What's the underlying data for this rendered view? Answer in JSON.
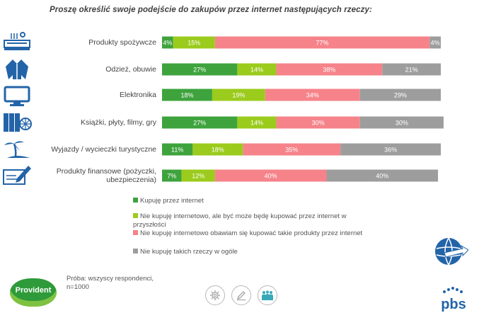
{
  "title": "Proszę określić swoje podejście do zakupów przez internet następujących rzeczy:",
  "colors": {
    "buy_online": "#3ea33d",
    "maybe_future": "#9bcb1c",
    "afraid": "#f6838a",
    "dont_buy": "#9d9d9d",
    "brand_blue": "#2364a8",
    "brand_green": "#2e9a3a"
  },
  "chart_data": {
    "type": "bar",
    "orientation": "horizontal",
    "stacked": true,
    "title": "Proszę określić swoje podejście do zakupów przez internet następujących rzeczy:",
    "categories": [
      "Produkty spożywcze",
      "Odzież, obuwie",
      "Elektronika",
      "Książki, płyty, filmy, gry",
      "Wyjazdy / wycieczki turystyczne",
      "Produkty finansowe (pożyczki, ubezpieczenia)"
    ],
    "category_lines": [
      [
        "Produkty spożywcze"
      ],
      [
        "Odzież, obuwie"
      ],
      [
        "Elektronika"
      ],
      [
        "Książki, płyty, filmy, gry"
      ],
      [
        "Wyjazdy / wycieczki turystyczne"
      ],
      [
        "Produkty finansowe (pożyczki,",
        "ubezpieczenia)"
      ]
    ],
    "series": [
      {
        "name": "Kupuję przez internet",
        "values": [
          4,
          27,
          18,
          27,
          11,
          7
        ]
      },
      {
        "name": "Nie kupuję internetowo, ale być może będę kupować przez internet w przyszłości",
        "values": [
          15,
          14,
          19,
          14,
          18,
          12
        ]
      },
      {
        "name": "Nie kupuję internetowo obawiam się kupować takie produkty przez internet",
        "values": [
          77,
          38,
          34,
          30,
          35,
          40
        ]
      },
      {
        "name": "Nie kupuję takich rzeczy w ogóle",
        "values": [
          4,
          21,
          29,
          30,
          36,
          40
        ]
      }
    ],
    "value_suffix": "%",
    "xlim": [
      0,
      100
    ],
    "legend_position": "bottom"
  },
  "legend": [
    {
      "lines": [
        "Kupuję przez internet"
      ]
    },
    {
      "lines": [
        "Nie kupuję internetowo, ale być może będę kupować przez internet w",
        "przyszłości"
      ]
    },
    {
      "lines": [
        "Nie kupuję internetowo obawiam się kupować takie produkty przez internet"
      ]
    },
    {
      "lines": [
        "Nie kupuję takich rzeczy w ogóle"
      ]
    }
  ],
  "footer": {
    "sample_line1": "Próba: wszyscy respondenci,",
    "sample_line2": "n=1000",
    "provident_logo": "Provident",
    "pbs_logo": "pbs"
  },
  "icons": [
    "food-tray-icon",
    "clothing-icon",
    "monitor-icon",
    "books-icon",
    "palm-beach-icon",
    "pen-document-icon"
  ]
}
